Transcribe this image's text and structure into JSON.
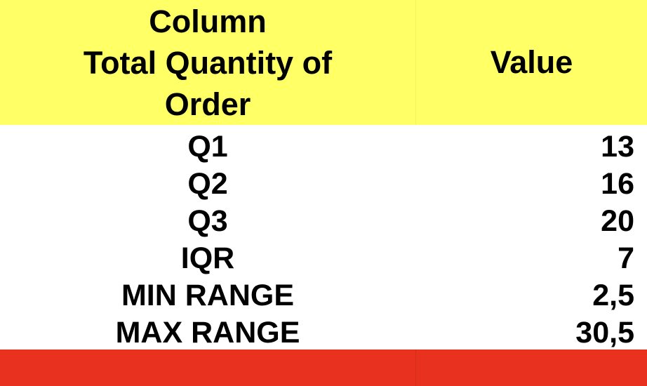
{
  "table": {
    "header": {
      "column_label_lines": [
        "Column",
        "Total Quantity of",
        "Order"
      ],
      "value_label": "Value"
    },
    "rows": [
      {
        "label": "Q1",
        "value": "13"
      },
      {
        "label": "Q2",
        "value": "16"
      },
      {
        "label": "Q3",
        "value": "20"
      },
      {
        "label": "IQR",
        "value": "7"
      },
      {
        "label": "MIN RANGE",
        "value": "2,5"
      },
      {
        "label": "MAX RANGE",
        "value": "30,5"
      }
    ]
  },
  "colors": {
    "header_background": "#ffff66",
    "footer_background": "#e8321f",
    "text": "#000000"
  }
}
